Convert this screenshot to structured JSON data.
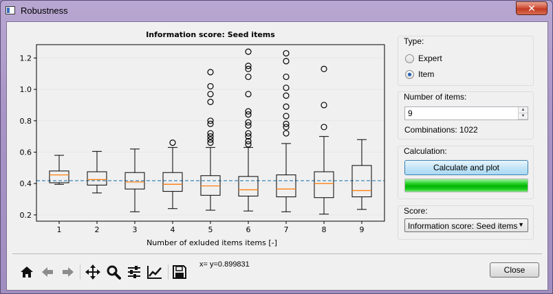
{
  "window": {
    "title": "Robustness",
    "close_glyph": "✕"
  },
  "chart_data": {
    "type": "box",
    "title": "Information score: Seed items",
    "xlabel": "Number of exluded items items [-]",
    "ylabel": "",
    "categories": [
      "1",
      "2",
      "3",
      "4",
      "5",
      "6",
      "7",
      "8",
      "9"
    ],
    "ylim": [
      0.16,
      1.285
    ],
    "yticks": [
      0.2,
      0.4,
      0.6,
      0.8,
      1.0,
      1.2
    ],
    "ytick_labels": [
      "0.2",
      "0.4",
      "0.6",
      "0.8",
      "1.0",
      "1.2"
    ],
    "grid": "horizontal",
    "reference_line": {
      "y": 0.418,
      "style": "dashed",
      "color": "#1f77b4"
    },
    "box_color": "#000000",
    "median_color": "#ff7f0e",
    "boxes": [
      {
        "whisker_low": 0.395,
        "q1": 0.405,
        "median": 0.455,
        "q3": 0.48,
        "whisker_high": 0.58,
        "outliers": []
      },
      {
        "whisker_low": 0.34,
        "q1": 0.39,
        "median": 0.425,
        "q3": 0.475,
        "whisker_high": 0.605,
        "outliers": []
      },
      {
        "whisker_low": 0.22,
        "q1": 0.365,
        "median": 0.41,
        "q3": 0.47,
        "whisker_high": 0.62,
        "outliers": []
      },
      {
        "whisker_low": 0.24,
        "q1": 0.35,
        "median": 0.395,
        "q3": 0.47,
        "whisker_high": 0.63,
        "outliers": [
          0.66
        ]
      },
      {
        "whisker_low": 0.23,
        "q1": 0.325,
        "median": 0.385,
        "q3": 0.45,
        "whisker_high": 0.63,
        "outliers": [
          0.66,
          0.68,
          0.7,
          0.72,
          0.78,
          0.8,
          0.92,
          0.97,
          1.02,
          1.11
        ]
      },
      {
        "whisker_low": 0.225,
        "q1": 0.32,
        "median": 0.36,
        "q3": 0.445,
        "whisker_high": 0.63,
        "outliers": [
          0.65,
          0.67,
          0.7,
          0.72,
          0.77,
          0.79,
          0.84,
          0.86,
          0.97,
          1.08,
          1.13,
          1.15,
          1.24
        ]
      },
      {
        "whisker_low": 0.22,
        "q1": 0.315,
        "median": 0.365,
        "q3": 0.455,
        "whisker_high": 0.655,
        "outliers": [
          0.72,
          0.76,
          0.78,
          0.83,
          0.89,
          0.96,
          1.01,
          1.08,
          1.18,
          1.23
        ]
      },
      {
        "whisker_low": 0.205,
        "q1": 0.31,
        "median": 0.4,
        "q3": 0.475,
        "whisker_high": 0.7,
        "outliers": [
          0.76,
          0.9,
          1.13
        ]
      },
      {
        "whisker_low": 0.235,
        "q1": 0.315,
        "median": 0.355,
        "q3": 0.515,
        "whisker_high": 0.68,
        "outliers": []
      }
    ]
  },
  "type_group": {
    "title": "Type:",
    "options": [
      {
        "label": "Expert",
        "checked": false
      },
      {
        "label": "Item",
        "checked": true
      }
    ]
  },
  "items_group": {
    "title": "Number of items:",
    "value": "9",
    "spin_up": "▲",
    "spin_down": "▼",
    "combinations": "Combinations: 1022"
  },
  "calc_group": {
    "title": "Calculation:",
    "button_label": "Calculate and plot",
    "progress": 1.0
  },
  "score_group": {
    "title": "Score:",
    "selected": "Information score: Seed items",
    "arrow": "▼"
  },
  "toolbar": {
    "tools": [
      {
        "name": "home-icon"
      },
      {
        "name": "back-arrow-icon"
      },
      {
        "name": "forward-arrow-icon"
      },
      {
        "name": "pan-move-icon"
      },
      {
        "name": "zoom-magnifier-icon"
      },
      {
        "name": "configure-subplots-icon"
      },
      {
        "name": "edit-axes-icon"
      },
      {
        "name": "save-floppy-icon"
      }
    ],
    "coordinates": "x= y=0.899831"
  },
  "footer": {
    "close_label": "Close"
  }
}
